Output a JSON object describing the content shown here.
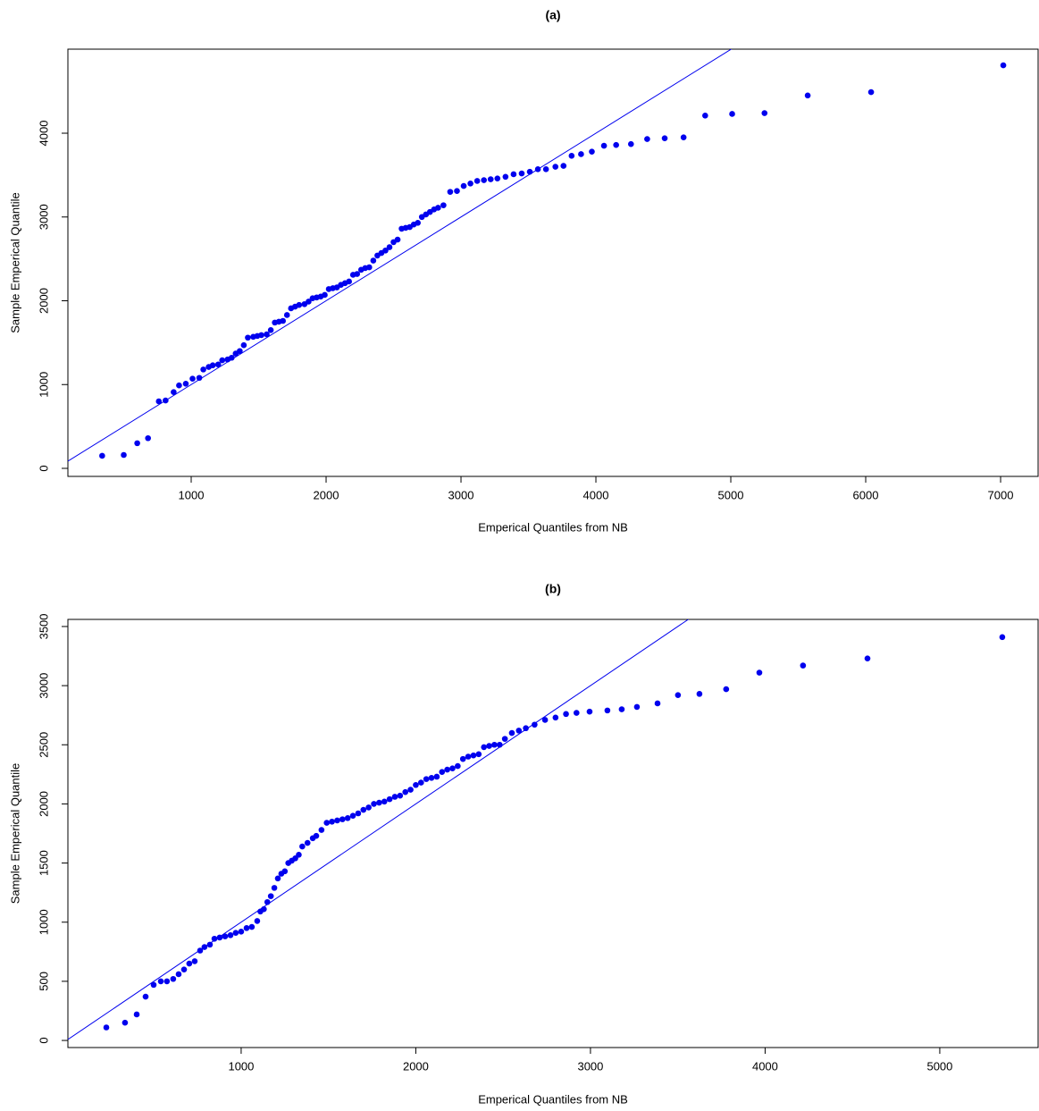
{
  "chart_data": [
    {
      "type": "scatter",
      "title": "(a)",
      "x_label": "Emperical Quantiles from NB",
      "y_label": "Sample Emperical Quantile",
      "color": "#0000ee",
      "x": [
        340,
        500,
        600,
        680,
        760,
        810,
        870,
        910,
        960,
        1010,
        1060,
        1090,
        1130,
        1160,
        1200,
        1230,
        1270,
        1300,
        1330,
        1360,
        1390,
        1420,
        1460,
        1490,
        1520,
        1560,
        1590,
        1620,
        1650,
        1680,
        1710,
        1740,
        1770,
        1800,
        1840,
        1870,
        1900,
        1930,
        1960,
        1990,
        2020,
        2050,
        2080,
        2110,
        2140,
        2170,
        2200,
        2230,
        2260,
        2290,
        2320,
        2350,
        2380,
        2410,
        2440,
        2470,
        2500,
        2530,
        2560,
        2590,
        2620,
        2650,
        2680,
        2710,
        2740,
        2770,
        2800,
        2830,
        2870,
        2920,
        2970,
        3020,
        3070,
        3120,
        3170,
        3220,
        3270,
        3330,
        3390,
        3450,
        3510,
        3570,
        3630,
        3700,
        3760,
        3820,
        3890,
        3970,
        4060,
        4150,
        4260,
        4380,
        4510,
        4650,
        4810,
        5010,
        5250,
        5570,
        6040,
        7020
      ],
      "y": [
        150,
        160,
        300,
        360,
        800,
        810,
        910,
        990,
        1010,
        1070,
        1080,
        1180,
        1210,
        1230,
        1240,
        1290,
        1300,
        1320,
        1370,
        1400,
        1470,
        1560,
        1570,
        1580,
        1590,
        1600,
        1650,
        1740,
        1750,
        1760,
        1830,
        1910,
        1930,
        1950,
        1960,
        1990,
        2030,
        2040,
        2050,
        2070,
        2140,
        2150,
        2160,
        2190,
        2210,
        2230,
        2310,
        2320,
        2370,
        2390,
        2400,
        2480,
        2540,
        2570,
        2600,
        2640,
        2700,
        2730,
        2860,
        2870,
        2880,
        2910,
        2930,
        3000,
        3030,
        3060,
        3090,
        3110,
        3140,
        3300,
        3310,
        3370,
        3400,
        3430,
        3440,
        3450,
        3460,
        3480,
        3510,
        3520,
        3540,
        3570,
        3570,
        3600,
        3610,
        3730,
        3750,
        3780,
        3850,
        3860,
        3870,
        3930,
        3940,
        3950,
        4210,
        4230,
        4240,
        4450,
        4490,
        4810
      ],
      "xlim": [
        86,
        7278
      ],
      "ylim": [
        -96,
        5003
      ],
      "xticks": [
        1000,
        2000,
        3000,
        4000,
        5000,
        6000,
        7000
      ],
      "yticks": [
        0,
        1000,
        2000,
        3000,
        4000
      ],
      "reference_line": {
        "slope": 1,
        "intercept": 0,
        "color": "#0000ee"
      }
    },
    {
      "type": "scatter",
      "title": "(b)",
      "x_label": "Emperical Quantiles from NB",
      "y_label": "Sample Emperical Quantile",
      "color": "#0000ee",
      "x": [
        228,
        335,
        402,
        453,
        499,
        540,
        575,
        611,
        642,
        673,
        703,
        734,
        765,
        790,
        821,
        847,
        877,
        908,
        939,
        969,
        1000,
        1031,
        1061,
        1092,
        1110,
        1130,
        1150,
        1170,
        1190,
        1210,
        1230,
        1250,
        1270,
        1290,
        1310,
        1330,
        1350,
        1380,
        1410,
        1430,
        1460,
        1490,
        1520,
        1550,
        1580,
        1610,
        1640,
        1670,
        1700,
        1730,
        1760,
        1790,
        1820,
        1850,
        1880,
        1910,
        1940,
        1970,
        2000,
        2030,
        2060,
        2090,
        2120,
        2150,
        2180,
        2210,
        2240,
        2270,
        2300,
        2330,
        2360,
        2390,
        2420,
        2450,
        2480,
        2510,
        2550,
        2590,
        2630,
        2680,
        2740,
        2800,
        2860,
        2920,
        2995,
        3097,
        3179,
        3266,
        3384,
        3501,
        3624,
        3777,
        3967,
        4217,
        4586,
        5358
      ],
      "y": [
        110,
        150,
        220,
        370,
        470,
        500,
        500,
        520,
        560,
        600,
        650,
        670,
        760,
        790,
        810,
        860,
        870,
        880,
        890,
        910,
        920,
        950,
        960,
        1010,
        1090,
        1110,
        1170,
        1220,
        1290,
        1370,
        1410,
        1430,
        1500,
        1520,
        1540,
        1570,
        1640,
        1670,
        1710,
        1730,
        1780,
        1840,
        1850,
        1860,
        1870,
        1880,
        1900,
        1920,
        1950,
        1970,
        2000,
        2010,
        2020,
        2040,
        2060,
        2070,
        2100,
        2120,
        2160,
        2180,
        2210,
        2220,
        2230,
        2270,
        2290,
        2300,
        2320,
        2380,
        2400,
        2410,
        2420,
        2480,
        2490,
        2500,
        2500,
        2550,
        2600,
        2620,
        2640,
        2670,
        2710,
        2730,
        2760,
        2770,
        2780,
        2790,
        2800,
        2820,
        2850,
        2920,
        2930,
        2970,
        3110,
        3170,
        3230,
        3410
      ],
      "xlim": [
        8,
        5563
      ],
      "ylim": [
        -60,
        3560
      ],
      "xticks": [
        1000,
        2000,
        3000,
        4000,
        5000
      ],
      "yticks": [
        0,
        500,
        1000,
        1500,
        2000,
        2500,
        3000,
        3500
      ],
      "reference_line": {
        "slope": 1,
        "intercept": 0,
        "color": "#0000ee"
      }
    }
  ]
}
